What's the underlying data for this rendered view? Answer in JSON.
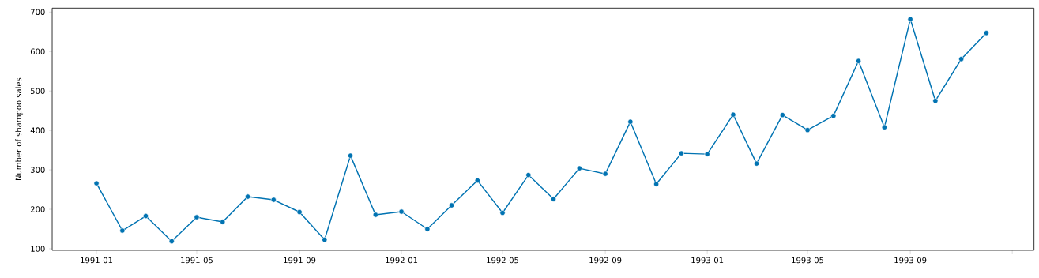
{
  "chart_data": {
    "type": "line",
    "ylabel": "Number of shampoo sales",
    "x": [
      "1991-01",
      "1991-02",
      "1991-03",
      "1991-04",
      "1991-05",
      "1991-06",
      "1991-07",
      "1991-08",
      "1991-09",
      "1991-10",
      "1991-11",
      "1991-12",
      "1992-01",
      "1992-02",
      "1992-03",
      "1992-04",
      "1992-05",
      "1992-06",
      "1992-07",
      "1992-08",
      "1992-09",
      "1992-10",
      "1992-11",
      "1992-12",
      "1993-01",
      "1993-02",
      "1993-03",
      "1993-04",
      "1993-05",
      "1993-06",
      "1993-07",
      "1993-08",
      "1993-09",
      "1993-10",
      "1993-11",
      "1993-12"
    ],
    "series": [
      {
        "color": "#0173b2",
        "values": [
          266,
          146,
          183,
          119,
          180,
          168,
          232,
          224,
          193,
          123,
          336,
          186,
          194,
          150,
          210,
          273,
          191,
          287,
          226,
          304,
          290,
          422,
          264,
          342,
          340,
          440,
          316,
          439,
          401,
          437,
          576,
          408,
          682,
          475,
          581,
          647
        ]
      }
    ],
    "xlim": [
      "1990-11-09",
      "1994-01-27"
    ],
    "xticks": [
      "1991-01",
      "1991-05",
      "1991-09",
      "1992-01",
      "1992-05",
      "1992-09",
      "1993-01",
      "1993-05",
      "1993-09",
      {
        "value": "1994-01",
        "label": null
      }
    ],
    "ylim": [
      96,
      710
    ],
    "yticks": [
      100,
      200,
      300,
      400,
      500,
      600,
      700
    ],
    "grid": false,
    "marker": "circle",
    "line_style": "solid"
  }
}
